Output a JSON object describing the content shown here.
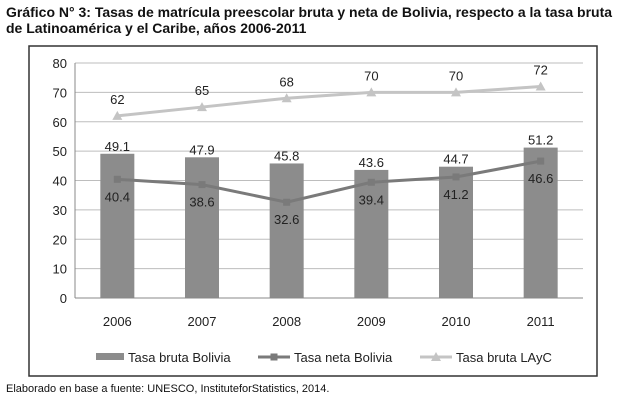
{
  "title": "Gráfico N° 3: Tasas de matrícula preescolar bruta y neta de Bolivia, respecto a la tasa bruta de Latinoamérica y el Caribe, años 2006-2011",
  "source": "Elaborado en base a fuente: UNESCO, InstituteforStatistics, 2014.",
  "chart_data": {
    "type": "bar",
    "title": "Gráfico N° 3: Tasas de matrícula preescolar bruta y neta de Bolivia, respecto a la tasa bruta de Latinoamérica y el Caribe, años 2006-2011",
    "categories": [
      "2006",
      "2007",
      "2008",
      "2009",
      "2010",
      "2011"
    ],
    "ylim": [
      0,
      80
    ],
    "yticks": [
      0,
      10,
      20,
      30,
      40,
      50,
      60,
      70,
      80
    ],
    "grid": true,
    "legend_position": "bottom",
    "series": [
      {
        "name": "Tasa bruta Bolivia",
        "kind": "bar",
        "color": "#8c8c8c",
        "values": [
          49.1,
          47.9,
          45.8,
          43.6,
          44.7,
          51.2
        ],
        "labels": [
          "49.1",
          "47.9",
          "45.8",
          "43.6",
          "44.7",
          "51.2"
        ]
      },
      {
        "name": "Tasa neta Bolivia",
        "kind": "line",
        "marker": "square",
        "color": "#7a7a7a",
        "values": [
          40.4,
          38.6,
          32.6,
          39.4,
          41.2,
          46.6
        ],
        "labels": [
          "40.4",
          "38.6",
          "32.6",
          "39.4",
          "41.2",
          "46.6"
        ]
      },
      {
        "name": "Tasa bruta LAyC",
        "kind": "line",
        "marker": "triangle",
        "color": "#c4c4c4",
        "values": [
          62,
          65,
          68,
          70,
          70,
          72
        ],
        "labels": [
          "62",
          "65",
          "68",
          "70",
          "70",
          "72"
        ]
      }
    ]
  }
}
